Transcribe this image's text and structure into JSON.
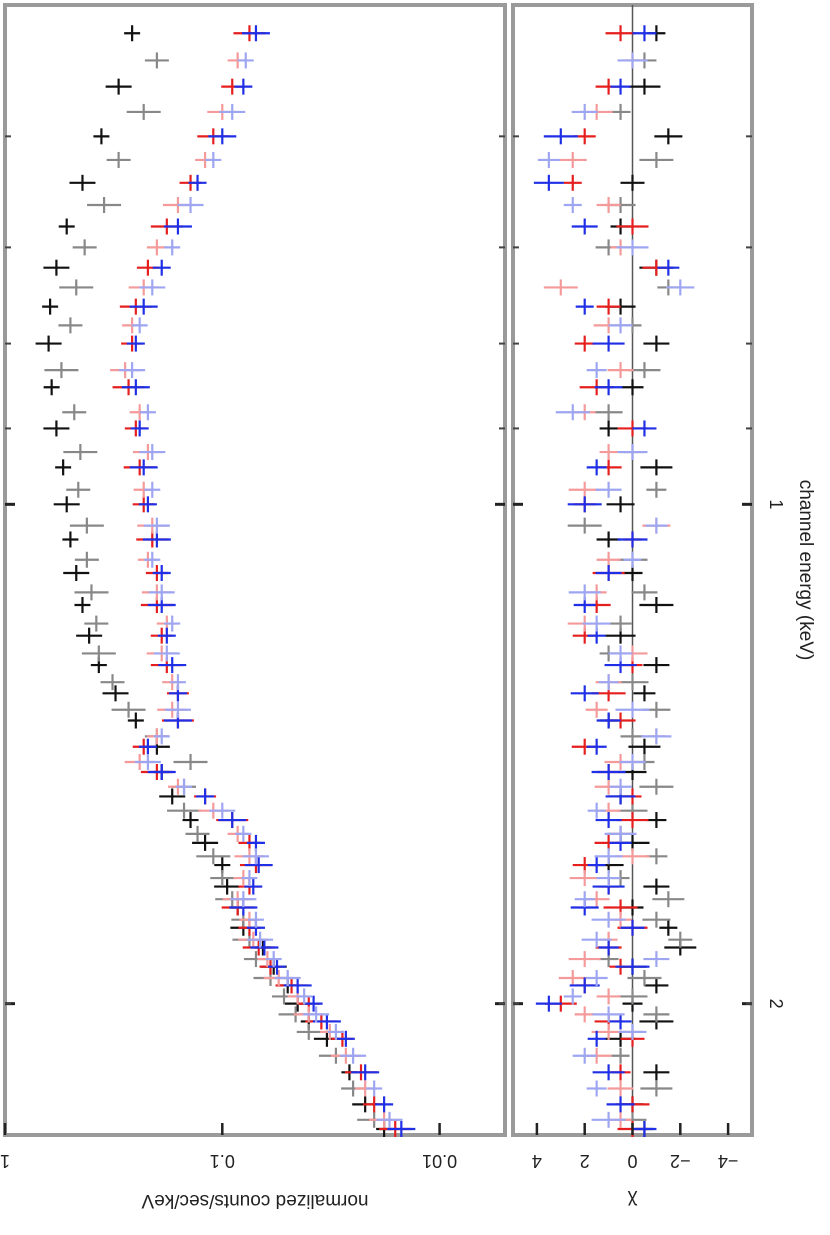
{
  "chart_data": [
    {
      "panel": "spectrum",
      "type": "scatter",
      "xlabel": "channel energy (keV)",
      "ylabel": "normalized counts/sec/keV",
      "xscale": "log",
      "yscale": "log",
      "xlim": [
        0.5,
        2.4
      ],
      "ylim": [
        0.005,
        1
      ],
      "x_ticks": [
        1,
        2
      ],
      "x_tick_labels": [
        "1",
        "2"
      ],
      "y_ticks": [
        1,
        0.1,
        0.01
      ],
      "y_tick_labels": [
        "1",
        "0.1",
        "0.01"
      ],
      "orientation": "rotated 90 degrees clockwise",
      "series": [
        {
          "color": "#111111",
          "x": [
            0.52,
            0.56,
            0.6,
            0.64,
            0.68,
            0.72,
            0.76,
            0.8,
            0.85,
            0.9,
            0.95,
            1.0,
            1.05,
            1.1,
            1.15,
            1.2,
            1.25,
            1.3,
            1.35,
            1.4,
            1.45,
            1.5,
            1.55,
            1.6,
            1.65,
            1.7,
            1.75,
            1.8,
            1.85,
            1.9,
            1.95,
            2.0,
            2.05,
            2.1,
            2.2,
            2.3,
            2.38
          ],
          "y": [
            0.26,
            0.3,
            0.36,
            0.44,
            0.52,
            0.58,
            0.62,
            0.63,
            0.61,
            0.58,
            0.54,
            0.52,
            0.5,
            0.47,
            0.44,
            0.41,
            0.37,
            0.31,
            0.25,
            0.2,
            0.19,
            0.17,
            0.14,
            0.12,
            0.1,
            0.095,
            0.085,
            0.08,
            0.065,
            0.058,
            0.05,
            0.045,
            0.04,
            0.033,
            0.026,
            0.022,
            0.018
          ]
        },
        {
          "color": "#888888",
          "x": [
            0.54,
            0.58,
            0.62,
            0.66,
            0.7,
            0.74,
            0.78,
            0.83,
            0.88,
            0.93,
            0.98,
            1.03,
            1.08,
            1.13,
            1.18,
            1.23,
            1.28,
            1.33,
            1.38,
            1.43,
            1.48,
            1.53,
            1.58,
            1.63,
            1.68,
            1.73,
            1.78,
            1.83,
            1.88,
            1.93,
            1.98,
            2.03,
            2.08,
            2.15,
            2.25,
            2.35
          ],
          "y": [
            0.2,
            0.23,
            0.3,
            0.35,
            0.43,
            0.47,
            0.5,
            0.55,
            0.48,
            0.45,
            0.46,
            0.42,
            0.42,
            0.4,
            0.38,
            0.37,
            0.32,
            0.27,
            0.2,
            0.14,
            0.15,
            0.15,
            0.13,
            0.11,
            0.1,
            0.09,
            0.08,
            0.075,
            0.07,
            0.06,
            0.052,
            0.046,
            0.04,
            0.03,
            0.025,
            0.02
          ]
        },
        {
          "color": "#e51e1e",
          "x": [
            0.52,
            0.56,
            0.6,
            0.64,
            0.68,
            0.72,
            0.76,
            0.8,
            0.85,
            0.9,
            0.95,
            1.0,
            1.05,
            1.1,
            1.15,
            1.2,
            1.25,
            1.3,
            1.35,
            1.4,
            1.45,
            1.5,
            1.55,
            1.6,
            1.65,
            1.7,
            1.75,
            1.8,
            1.85,
            1.9,
            1.95,
            2.0,
            2.05,
            2.1,
            2.2,
            2.3,
            2.38
          ],
          "y": [
            0.075,
            0.09,
            0.11,
            0.14,
            0.18,
            0.22,
            0.25,
            0.26,
            0.27,
            0.25,
            0.24,
            0.23,
            0.21,
            0.2,
            0.2,
            0.19,
            0.18,
            0.16,
            0.16,
            0.23,
            0.2,
            0.12,
            0.09,
            0.075,
            0.07,
            0.075,
            0.085,
            0.075,
            0.068,
            0.06,
            0.048,
            0.04,
            0.035,
            0.028,
            0.023,
            0.02,
            0.016
          ]
        },
        {
          "color": "#f49a9a",
          "x": [
            0.54,
            0.58,
            0.62,
            0.66,
            0.7,
            0.74,
            0.78,
            0.83,
            0.88,
            0.93,
            0.98,
            1.03,
            1.08,
            1.13,
            1.18,
            1.23,
            1.28,
            1.33,
            1.38,
            1.43,
            1.48,
            1.53,
            1.58,
            1.63,
            1.68,
            1.73,
            1.78,
            1.83,
            1.88,
            1.93,
            1.98,
            2.03,
            2.08,
            2.15,
            2.25,
            2.35
          ],
          "y": [
            0.085,
            0.1,
            0.12,
            0.16,
            0.2,
            0.23,
            0.26,
            0.28,
            0.24,
            0.22,
            0.23,
            0.21,
            0.22,
            0.2,
            0.18,
            0.19,
            0.17,
            0.17,
            0.2,
            0.24,
            0.16,
            0.11,
            0.085,
            0.075,
            0.08,
            0.085,
            0.075,
            0.072,
            0.062,
            0.055,
            0.045,
            0.04,
            0.032,
            0.027,
            0.022,
            0.018
          ]
        },
        {
          "color": "#1f2fe6",
          "x": [
            0.52,
            0.56,
            0.6,
            0.64,
            0.68,
            0.72,
            0.76,
            0.8,
            0.85,
            0.9,
            0.95,
            1.0,
            1.05,
            1.1,
            1.15,
            1.2,
            1.25,
            1.3,
            1.35,
            1.4,
            1.45,
            1.5,
            1.55,
            1.6,
            1.65,
            1.7,
            1.75,
            1.8,
            1.85,
            1.9,
            1.95,
            2.0,
            2.05,
            2.1,
            2.2,
            2.3,
            2.38
          ],
          "y": [
            0.07,
            0.08,
            0.1,
            0.13,
            0.16,
            0.19,
            0.23,
            0.25,
            0.25,
            0.24,
            0.23,
            0.22,
            0.2,
            0.19,
            0.19,
            0.18,
            0.17,
            0.16,
            0.16,
            0.22,
            0.19,
            0.12,
            0.09,
            0.07,
            0.068,
            0.072,
            0.08,
            0.07,
            0.064,
            0.056,
            0.045,
            0.038,
            0.033,
            0.027,
            0.022,
            0.018,
            0.015
          ]
        },
        {
          "color": "#9ea6f2",
          "x": [
            0.54,
            0.58,
            0.62,
            0.66,
            0.7,
            0.74,
            0.78,
            0.83,
            0.88,
            0.93,
            0.98,
            1.03,
            1.08,
            1.13,
            1.18,
            1.23,
            1.28,
            1.33,
            1.38,
            1.43,
            1.48,
            1.53,
            1.58,
            1.63,
            1.68,
            1.73,
            1.78,
            1.83,
            1.88,
            1.93,
            1.98,
            2.03,
            2.08,
            2.15,
            2.25,
            2.35
          ],
          "y": [
            0.078,
            0.09,
            0.11,
            0.14,
            0.17,
            0.21,
            0.24,
            0.26,
            0.22,
            0.21,
            0.21,
            0.2,
            0.21,
            0.19,
            0.17,
            0.18,
            0.16,
            0.16,
            0.19,
            0.22,
            0.15,
            0.1,
            0.08,
            0.07,
            0.075,
            0.08,
            0.07,
            0.067,
            0.058,
            0.05,
            0.042,
            0.037,
            0.03,
            0.025,
            0.02,
            0.017
          ]
        }
      ]
    },
    {
      "panel": "residuals",
      "type": "scatter",
      "xlabel": "channel energy (keV)",
      "ylabel": "χ",
      "xscale": "log",
      "xlim": [
        0.5,
        2.4
      ],
      "ylim": [
        -5,
        5
      ],
      "y_ticks": [
        4,
        2,
        0,
        -2,
        -4
      ],
      "y_tick_labels": [
        "4",
        "2",
        "0",
        "−2",
        "−4"
      ],
      "series": [
        {
          "color": "#111111",
          "x": [
            0.52,
            0.56,
            0.6,
            0.64,
            0.68,
            0.72,
            0.76,
            0.8,
            0.85,
            0.9,
            0.95,
            1.0,
            1.05,
            1.1,
            1.15,
            1.2,
            1.25,
            1.3,
            1.35,
            1.4,
            1.45,
            1.5,
            1.55,
            1.6,
            1.65,
            1.7,
            1.75,
            1.8,
            1.85,
            1.9,
            1.95,
            2.0,
            2.05,
            2.1,
            2.2,
            2.3,
            2.38
          ],
          "y": [
            -1,
            -0.5,
            -1.5,
            0,
            0.5,
            -1,
            0.5,
            -1,
            0,
            1,
            -1,
            0.5,
            1,
            0,
            -1,
            0.5,
            -1,
            -0.5,
            1,
            -0.5,
            0,
            0.5,
            -1,
            0,
            1,
            -1,
            0,
            -1.5,
            -2,
            0,
            -1,
            0,
            -1,
            0.5,
            -1,
            0,
            -0.5
          ]
        },
        {
          "color": "#888888",
          "x": [
            0.54,
            0.58,
            0.62,
            0.66,
            0.7,
            0.74,
            0.78,
            0.83,
            0.88,
            0.93,
            0.98,
            1.03,
            1.08,
            1.13,
            1.18,
            1.23,
            1.28,
            1.33,
            1.38,
            1.43,
            1.48,
            1.53,
            1.58,
            1.63,
            1.68,
            1.73,
            1.78,
            1.83,
            1.88,
            1.93,
            1.98,
            2.03,
            2.08,
            2.15,
            2.25,
            2.35
          ],
          "y": [
            -0.5,
            0.5,
            -1,
            0.5,
            1,
            -1.5,
            0,
            -0.5,
            1,
            0,
            -1,
            2,
            0,
            -0.5,
            0.5,
            1,
            0,
            -1,
            0,
            -0.5,
            -1,
            0,
            0.5,
            -1,
            0.5,
            -1.5,
            -1,
            -2,
            1,
            -0.5,
            0,
            -1,
            0,
            0.5,
            -1,
            0
          ]
        },
        {
          "color": "#e51e1e",
          "x": [
            0.52,
            0.56,
            0.6,
            0.64,
            0.68,
            0.72,
            0.76,
            0.8,
            0.85,
            0.9,
            0.95,
            1.0,
            1.05,
            1.1,
            1.15,
            1.2,
            1.25,
            1.3,
            1.35,
            1.4,
            1.45,
            1.5,
            1.55,
            1.6,
            1.65,
            1.7,
            1.75,
            1.8,
            1.85,
            1.9,
            1.95,
            2.0,
            2.05,
            2.1,
            2.2,
            2.3,
            2.38
          ],
          "y": [
            0.5,
            1,
            2,
            2.5,
            0,
            -1,
            1,
            2,
            1.5,
            0,
            1,
            2,
            0,
            1,
            1.5,
            2,
            0,
            1,
            0.5,
            2,
            1,
            0,
            0,
            1,
            2,
            1,
            0.5,
            0,
            1,
            0.5,
            2,
            3,
            1,
            0,
            0.5,
            0,
            0
          ]
        },
        {
          "color": "#f49a9a",
          "x": [
            0.54,
            0.58,
            0.62,
            0.66,
            0.7,
            0.74,
            0.78,
            0.83,
            0.88,
            0.93,
            0.98,
            1.03,
            1.08,
            1.13,
            1.18,
            1.23,
            1.28,
            1.33,
            1.38,
            1.43,
            1.48,
            1.53,
            1.58,
            1.63,
            1.68,
            1.73,
            1.78,
            1.83,
            1.88,
            1.93,
            1.98,
            2.03,
            2.08,
            2.15,
            2.25,
            2.35
          ],
          "y": [
            0,
            1.5,
            2.5,
            1,
            0.5,
            3,
            1,
            0.5,
            2,
            1,
            2,
            -1,
            1,
            1.5,
            2,
            0,
            1,
            1.5,
            -1,
            0.5,
            1,
            1,
            0.5,
            0,
            2,
            1.5,
            0.5,
            1,
            2,
            2.5,
            1,
            2,
            1,
            1.5,
            0.5,
            0.5
          ]
        },
        {
          "color": "#1f2fe6",
          "x": [
            0.52,
            0.56,
            0.6,
            0.64,
            0.68,
            0.72,
            0.76,
            0.8,
            0.85,
            0.9,
            0.95,
            1.0,
            1.05,
            1.1,
            1.15,
            1.2,
            1.25,
            1.3,
            1.35,
            1.4,
            1.45,
            1.5,
            1.55,
            1.6,
            1.65,
            1.7,
            1.75,
            1.8,
            1.85,
            1.9,
            1.95,
            2.0,
            2.05,
            2.1,
            2.2,
            2.3,
            2.38
          ],
          "y": [
            -0.5,
            0.5,
            3,
            3.5,
            2,
            -1.5,
            2,
            1,
            1,
            -0.5,
            1.5,
            2,
            0,
            1,
            2,
            1.5,
            0.5,
            2,
            1,
            1.5,
            1,
            0.5,
            1,
            0.5,
            1.5,
            1,
            2,
            0,
            1,
            0,
            2,
            3.5,
            0.5,
            1.5,
            1,
            0.5,
            -0.5
          ]
        },
        {
          "color": "#9ea6f2",
          "x": [
            0.54,
            0.58,
            0.62,
            0.66,
            0.7,
            0.74,
            0.78,
            0.83,
            0.88,
            0.93,
            0.98,
            1.03,
            1.08,
            1.13,
            1.18,
            1.23,
            1.28,
            1.33,
            1.38,
            1.43,
            1.48,
            1.53,
            1.58,
            1.63,
            1.68,
            1.73,
            1.78,
            1.83,
            1.88,
            1.93,
            1.98,
            2.03,
            2.08,
            2.15,
            2.25,
            2.35
          ],
          "y": [
            0,
            2,
            3.5,
            2.5,
            0,
            -2,
            0.5,
            1.5,
            2.5,
            0,
            1,
            -1,
            0,
            2,
            1.5,
            0.5,
            1,
            0,
            -1,
            0,
            0.5,
            1.5,
            0.5,
            1,
            1,
            2,
            1,
            1.5,
            -1,
            1.5,
            2.5,
            1,
            0,
            2,
            1.5,
            1
          ]
        }
      ]
    }
  ]
}
